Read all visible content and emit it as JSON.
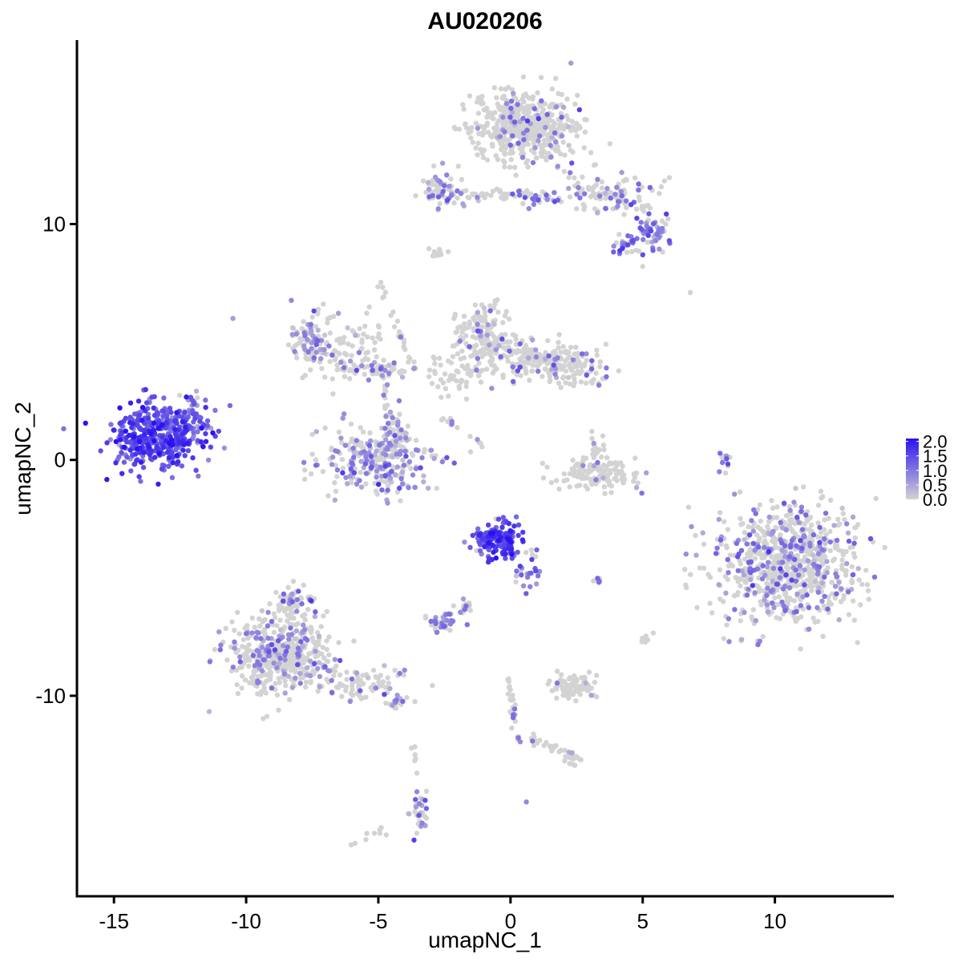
{
  "chart_data": {
    "type": "scatter",
    "title": "AU020206",
    "xlabel": "umapNC_1",
    "ylabel": "umapNC_2",
    "xlim": [
      -16.4,
      14.5
    ],
    "ylim": [
      -18.5,
      17.8
    ],
    "xticks": [
      -15,
      -10,
      -5,
      0,
      5,
      10
    ],
    "xtick_labels": [
      "-15",
      "-10",
      "-5",
      "0",
      "5",
      "10"
    ],
    "yticks": [
      -10,
      0,
      10
    ],
    "ytick_labels": [
      "-10",
      "0",
      "10"
    ],
    "grid": false,
    "legend": {
      "type": "colorbar",
      "placement": "right",
      "ticks": [
        0.0,
        0.5,
        1.0,
        1.5,
        2.0
      ],
      "tick_labels": [
        "0.0",
        "0.5",
        "1.0",
        "1.5",
        "2.0"
      ],
      "range": [
        0.0,
        2.1
      ],
      "low_color": "#d3d3d3",
      "high_color": "#2b12f0"
    },
    "clusters": [
      {
        "cx": -13.3,
        "cy": 1.0,
        "sx": 1.05,
        "sy": 0.8,
        "n": 420,
        "expr_mean": 1.45,
        "expr_frac": 0.98
      },
      {
        "cx": -11.9,
        "cy": 1.8,
        "sx": 0.35,
        "sy": 0.6,
        "n": 40,
        "expr_mean": 0.9,
        "expr_frac": 0.8
      },
      {
        "cx": 0.6,
        "cy": 14.2,
        "sx": 1.2,
        "sy": 0.9,
        "n": 520,
        "expr_mean": 0.8,
        "expr_frac": 0.1
      },
      {
        "cx": 3.7,
        "cy": 11.3,
        "sx": 1.0,
        "sy": 0.5,
        "n": 80,
        "expr_mean": 0.9,
        "expr_frac": 0.3
      },
      {
        "cx": 5.4,
        "cy": 9.6,
        "sx": 0.4,
        "sy": 0.4,
        "n": 60,
        "expr_mean": 1.0,
        "expr_frac": 0.55
      },
      {
        "cx": 4.3,
        "cy": 9.1,
        "sx": 0.3,
        "sy": 0.3,
        "n": 25,
        "expr_mean": 1.0,
        "expr_frac": 0.6
      },
      {
        "cx": -2.6,
        "cy": 11.6,
        "sx": 0.4,
        "sy": 0.4,
        "n": 60,
        "expr_mean": 0.9,
        "expr_frac": 0.35
      },
      {
        "cx": -0.8,
        "cy": 11.2,
        "sx": 1.4,
        "sy": 0.2,
        "n": 45,
        "expr_mean": 0.8,
        "expr_frac": 0.2
      },
      {
        "cx": 1.2,
        "cy": 11.1,
        "sx": 0.5,
        "sy": 0.2,
        "n": 25,
        "expr_mean": 1.0,
        "expr_frac": 0.6
      },
      {
        "cx": -2.8,
        "cy": 8.8,
        "sx": 0.2,
        "sy": 0.1,
        "n": 10,
        "expr_mean": 0.5,
        "expr_frac": 0.0
      },
      {
        "cx": -7.6,
        "cy": 5.3,
        "sx": 0.4,
        "sy": 0.6,
        "n": 80,
        "expr_mean": 0.8,
        "expr_frac": 0.45
      },
      {
        "cx": -6.1,
        "cy": 4.6,
        "sx": 1.1,
        "sy": 0.8,
        "n": 90,
        "expr_mean": 0.8,
        "expr_frac": 0.15
      },
      {
        "cx": -4.9,
        "cy": 3.9,
        "sx": 0.7,
        "sy": 0.3,
        "n": 50,
        "expr_mean": 0.8,
        "expr_frac": 0.3
      },
      {
        "cx": -5.1,
        "cy": 0.0,
        "sx": 1.3,
        "sy": 0.8,
        "n": 280,
        "expr_mean": 0.75,
        "expr_frac": 0.4
      },
      {
        "cx": -4.3,
        "cy": 1.2,
        "sx": 0.35,
        "sy": 0.6,
        "n": 40,
        "expr_mean": 0.8,
        "expr_frac": 0.4
      },
      {
        "cx": -1.0,
        "cy": 5.2,
        "sx": 0.6,
        "sy": 0.8,
        "n": 150,
        "expr_mean": 0.8,
        "expr_frac": 0.15
      },
      {
        "cx": 0.7,
        "cy": 4.4,
        "sx": 0.8,
        "sy": 0.45,
        "n": 110,
        "expr_mean": 0.9,
        "expr_frac": 0.12
      },
      {
        "cx": 2.1,
        "cy": 4.0,
        "sx": 0.9,
        "sy": 0.5,
        "n": 140,
        "expr_mean": 0.8,
        "expr_frac": 0.12
      },
      {
        "cx": -2.0,
        "cy": 3.6,
        "sx": 0.8,
        "sy": 0.5,
        "n": 50,
        "expr_mean": 0.7,
        "expr_frac": 0.05
      },
      {
        "cx": 3.3,
        "cy": -0.6,
        "sx": 1.0,
        "sy": 0.4,
        "n": 140,
        "expr_mean": 0.8,
        "expr_frac": 0.03
      },
      {
        "cx": 3.2,
        "cy": 0.6,
        "sx": 0.2,
        "sy": 0.5,
        "n": 20,
        "expr_mean": 0.8,
        "expr_frac": 0.1
      },
      {
        "cx": 10.5,
        "cy": -4.4,
        "sx": 1.55,
        "sy": 1.45,
        "n": 780,
        "expr_mean": 0.85,
        "expr_frac": 0.28
      },
      {
        "cx": -0.5,
        "cy": -3.4,
        "sx": 0.5,
        "sy": 0.45,
        "n": 160,
        "expr_mean": 1.5,
        "expr_frac": 0.92
      },
      {
        "cx": 0.6,
        "cy": -4.7,
        "sx": 0.3,
        "sy": 0.55,
        "n": 30,
        "expr_mean": 1.1,
        "expr_frac": 0.8
      },
      {
        "cx": -2.6,
        "cy": -6.9,
        "sx": 0.3,
        "sy": 0.3,
        "n": 40,
        "expr_mean": 0.9,
        "expr_frac": 0.55
      },
      {
        "cx": -1.7,
        "cy": -6.2,
        "sx": 0.2,
        "sy": 0.5,
        "n": 15,
        "expr_mean": 0.9,
        "expr_frac": 0.5
      },
      {
        "cx": -8.7,
        "cy": -8.3,
        "sx": 1.1,
        "sy": 1.0,
        "n": 480,
        "expr_mean": 0.8,
        "expr_frac": 0.22
      },
      {
        "cx": -8.2,
        "cy": -6.0,
        "sx": 0.5,
        "sy": 0.4,
        "n": 60,
        "expr_mean": 0.8,
        "expr_frac": 0.18
      },
      {
        "cx": -5.6,
        "cy": -9.5,
        "sx": 0.9,
        "sy": 0.4,
        "n": 80,
        "expr_mean": 0.9,
        "expr_frac": 0.28
      },
      {
        "cx": -4.3,
        "cy": -10.3,
        "sx": 0.3,
        "sy": 0.15,
        "n": 20,
        "expr_mean": 0.9,
        "expr_frac": 0.3
      },
      {
        "cx": 2.5,
        "cy": -9.6,
        "sx": 0.6,
        "sy": 0.3,
        "n": 80,
        "expr_mean": 0.8,
        "expr_frac": 0.03
      },
      {
        "cx": 2.3,
        "cy": -12.6,
        "sx": 0.25,
        "sy": 0.2,
        "n": 18,
        "expr_mean": 0.8,
        "expr_frac": 0.1
      },
      {
        "cx": -3.4,
        "cy": -14.8,
        "sx": 0.2,
        "sy": 0.6,
        "n": 30,
        "expr_mean": 0.9,
        "expr_frac": 0.35
      },
      {
        "cx": 5.1,
        "cy": -7.5,
        "sx": 0.15,
        "sy": 0.2,
        "n": 10,
        "expr_mean": 0.5,
        "expr_frac": 0.0
      },
      {
        "cx": 3.2,
        "cy": -5.1,
        "sx": 0.15,
        "sy": 0.1,
        "n": 6,
        "expr_mean": 1.0,
        "expr_frac": 0.6
      },
      {
        "cx": 8.1,
        "cy": 0.2,
        "sx": 0.15,
        "sy": 0.6,
        "n": 12,
        "expr_mean": 1.0,
        "expr_frac": 0.5
      }
    ],
    "filaments": [
      {
        "x0": -5.0,
        "y0": 7.5,
        "x1": -3.6,
        "y1": 3.8,
        "n": 25,
        "expr_frac": 0.1
      },
      {
        "x0": -4.8,
        "y0": 3.5,
        "x1": -4.6,
        "y1": 1.5,
        "n": 15,
        "expr_frac": 0.2
      },
      {
        "x0": -2.5,
        "y0": 1.8,
        "x1": -1.0,
        "y1": 0.6,
        "n": 12,
        "expr_frac": 0.1
      },
      {
        "x0": -0.1,
        "y0": -9.2,
        "x1": 0.3,
        "y1": -12.0,
        "n": 30,
        "expr_frac": 0.08
      },
      {
        "x0": 0.6,
        "y0": -11.8,
        "x1": 2.2,
        "y1": -12.4,
        "n": 20,
        "expr_frac": 0.05
      },
      {
        "x0": -3.7,
        "y0": -12.0,
        "x1": -3.6,
        "y1": -13.5,
        "n": 6,
        "expr_frac": 0.0
      },
      {
        "x0": -6.0,
        "y0": -16.3,
        "x1": -4.8,
        "y1": -15.6,
        "n": 8,
        "expr_frac": 0.0
      },
      {
        "x0": 4.8,
        "y0": 10.5,
        "x1": 3.0,
        "y1": 12.0,
        "n": 12,
        "expr_frac": 0.15
      },
      {
        "x0": 6.0,
        "y0": 12.0,
        "x1": 5.0,
        "y1": 10.5,
        "n": 10,
        "expr_frac": 0.2
      },
      {
        "x0": 1.2,
        "y0": 13.0,
        "x1": 2.8,
        "y1": 11.3,
        "n": 12,
        "expr_frac": 0.2
      }
    ],
    "outliers": [
      {
        "x": -10.5,
        "y": 6.0,
        "v": 0.6
      },
      {
        "x": 6.8,
        "y": 7.1,
        "v": 0.0
      },
      {
        "x": 5.0,
        "y": 8.2,
        "v": 0.0
      },
      {
        "x": -4.7,
        "y": -15.9,
        "v": 0.0
      },
      {
        "x": 0.6,
        "y": -14.5,
        "v": 0.8
      },
      {
        "x": -2.0,
        "y": 4.5,
        "v": 0.0
      },
      {
        "x": -2.6,
        "y": 1.7,
        "v": 0.0
      },
      {
        "x": 7.9,
        "y": -0.5,
        "v": 0.9
      }
    ]
  }
}
